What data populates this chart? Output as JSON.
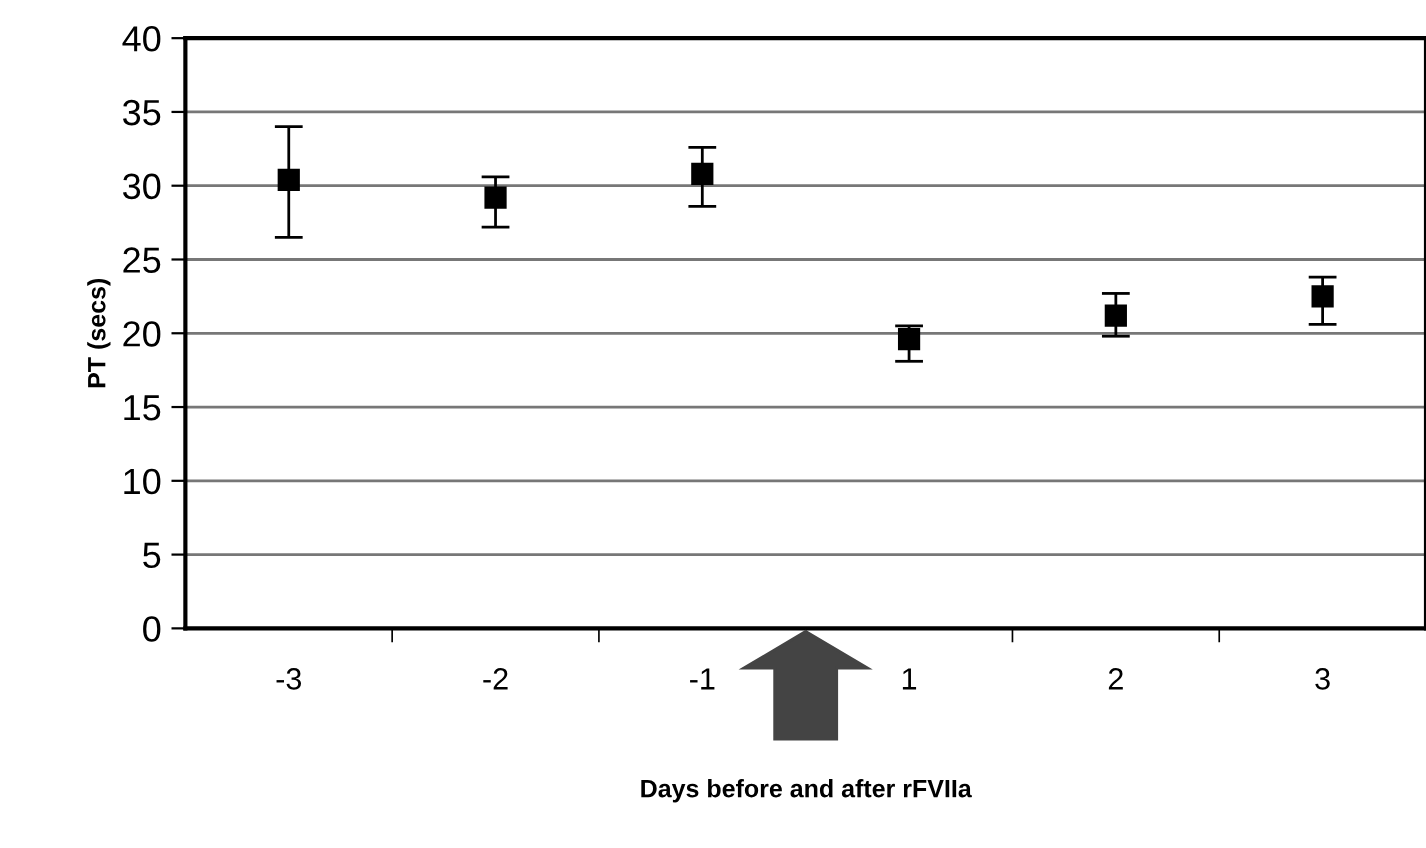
{
  "chart_data": {
    "type": "scatter",
    "xlabel": "Days before and after rFVIIa",
    "ylabel": "PT (secs)",
    "categories": [
      "-3",
      "-2",
      "-1",
      "1",
      "2",
      "3"
    ],
    "series": [
      {
        "color": "#000000",
        "values": [
          30.4,
          29.2,
          30.8,
          19.6,
          21.2,
          22.5
        ],
        "errors": [
          [
            26.5,
            34
          ],
          [
            27.2,
            30.6
          ],
          [
            28.6,
            32.6
          ],
          [
            18.1,
            20.5
          ],
          [
            19.8,
            22.7
          ],
          [
            20.6,
            23.8
          ]
        ]
      }
    ],
    "ylim": [
      0,
      40
    ],
    "yticks": [
      0,
      5,
      10,
      15,
      20,
      25,
      30,
      35,
      40
    ],
    "grid": "y",
    "marker": "square",
    "legend": false
  }
}
